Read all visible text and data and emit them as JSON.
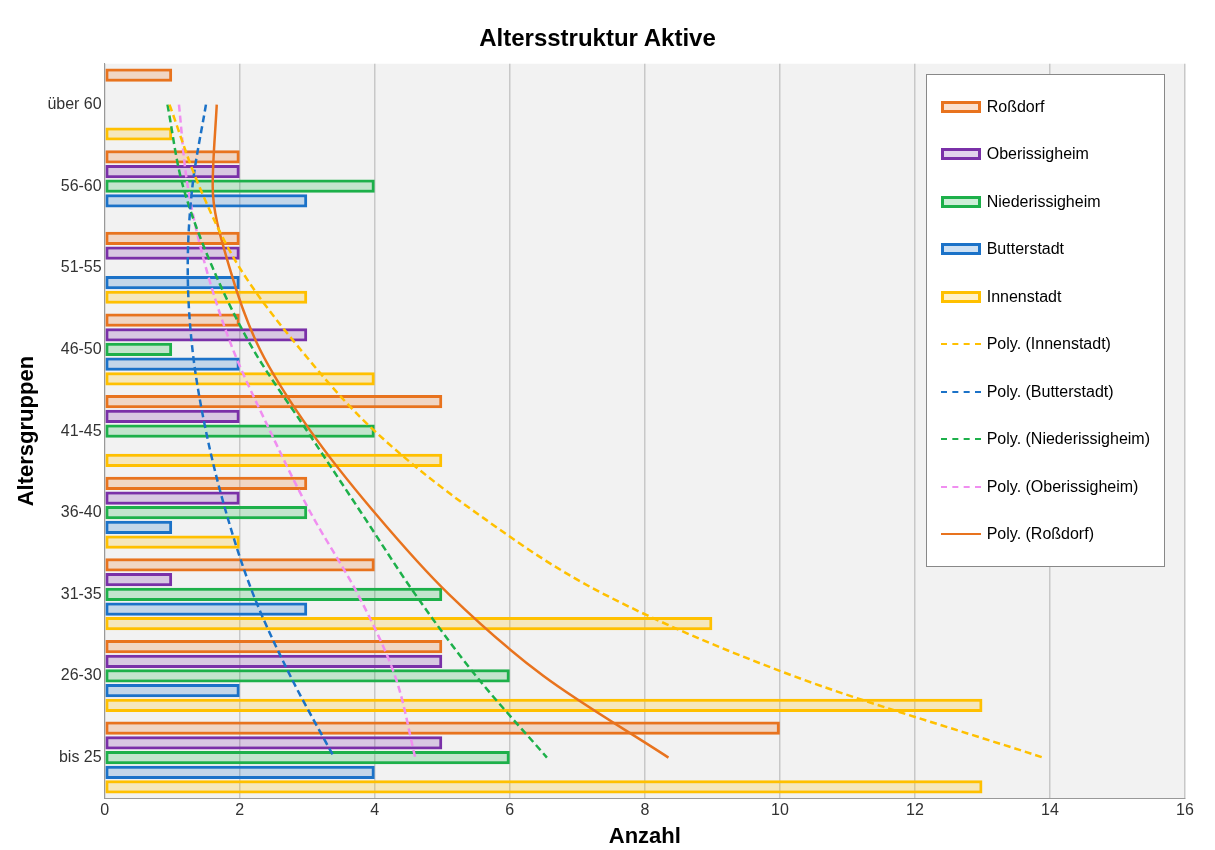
{
  "chart_data": {
    "type": "bar",
    "orientation": "horizontal",
    "title": "Altersstruktur Aktive",
    "xlabel": "Anzahl",
    "ylabel": "Altersgruppen",
    "categories": [
      "über 60",
      "56-60",
      "51-55",
      "46-50",
      "41-45",
      "36-40",
      "31-35",
      "26-30",
      "bis 25"
    ],
    "xlim": [
      0,
      16
    ],
    "xticks": [
      0,
      2,
      4,
      6,
      8,
      10,
      12,
      14,
      16
    ],
    "grid": "x",
    "legend": "top right",
    "series": [
      {
        "name": "Roßdorf",
        "color": "#e8731e",
        "values": [
          1,
          2,
          2,
          2,
          5,
          3,
          4,
          5,
          10
        ]
      },
      {
        "name": "Oberissigheim",
        "color": "#7a30a8",
        "values": [
          0,
          2,
          2,
          3,
          2,
          2,
          1,
          5,
          5
        ]
      },
      {
        "name": "Niederissigheim",
        "color": "#1db04a",
        "values": [
          0,
          4,
          0,
          1,
          4,
          3,
          5,
          6,
          6
        ]
      },
      {
        "name": "Butterstadt",
        "color": "#1b72c8",
        "values": [
          0,
          3,
          2,
          2,
          0,
          1,
          3,
          2,
          4
        ]
      },
      {
        "name": "Innenstadt",
        "color": "#ffc000",
        "values": [
          1,
          0,
          3,
          4,
          5,
          2,
          9,
          13,
          13
        ]
      },
      {
        "name": "Poly. (Innenstadt)",
        "type": "line",
        "line_style": "dashed",
        "color": "#ffc000",
        "values": [
          0.96,
          1.4,
          2.0,
          2.9,
          4.0,
          5.5,
          7.4,
          10.2,
          13.9
        ]
      },
      {
        "name": "Poly. (Butterstadt)",
        "type": "line",
        "line_style": "dashed",
        "color": "#1b72c8",
        "values": [
          1.5,
          1.3,
          1.23,
          1.3,
          1.5,
          1.8,
          2.2,
          2.75,
          3.4
        ]
      },
      {
        "name": "Poly. (Niederissigheim)",
        "type": "line",
        "line_style": "dashed",
        "color": "#1db04a",
        "values": [
          0.93,
          1.16,
          1.6,
          2.2,
          3.0,
          3.8,
          4.6,
          5.5,
          6.55
        ]
      },
      {
        "name": "Poly. (Oberissigheim)",
        "type": "line",
        "line_style": "dashed",
        "color": "#f08ef0",
        "values": [
          1.1,
          1.23,
          1.5,
          1.9,
          2.45,
          3.05,
          3.75,
          4.3,
          4.6
        ]
      },
      {
        "name": "Poly. (Roßdorf)",
        "type": "line",
        "line_style": "solid",
        "color": "#e8731e",
        "values": [
          1.66,
          1.6,
          1.85,
          2.3,
          3.05,
          4.0,
          5.1,
          6.5,
          8.35
        ]
      }
    ]
  }
}
